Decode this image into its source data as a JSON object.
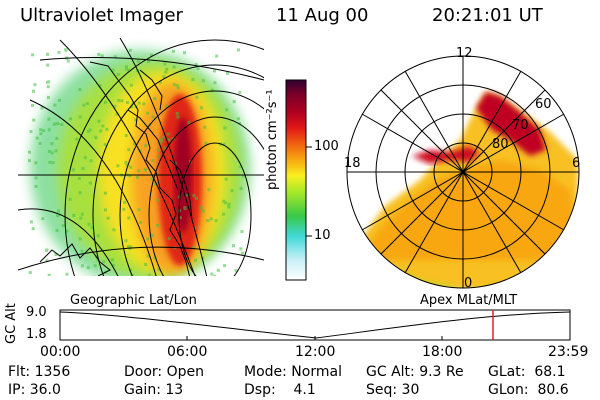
{
  "header": {
    "instrument": "Ultraviolet Imager",
    "date": "11 Aug 00",
    "time": "20:21:01 UT"
  },
  "colorbar": {
    "unit_label": "photon cm⁻²s⁻¹",
    "tick_100": "100",
    "tick_10": "10"
  },
  "polar_plot": {
    "labels": {
      "mlt_12": "12",
      "mlt_18": "18",
      "mlt_6": "6",
      "mlt_0": "0",
      "lat_60": "60",
      "lat_70": "70",
      "lat_80": "80"
    }
  },
  "panel_captions": {
    "left": "Geographic Lat/Lon",
    "right": "Apex MLat/MLT"
  },
  "timeline": {
    "axis_label": "GC Alt",
    "y_max": "9.0",
    "y_min": "1.8",
    "ticks": [
      "00:00",
      "06:00",
      "12:00",
      "18:00",
      "23:59"
    ],
    "marker_time": "20:21"
  },
  "info": {
    "flt": "Flt: 1356",
    "ip": "IP: 36.0",
    "door": "Door: Open",
    "gain": "Gain: 13",
    "mode": "Mode: Normal",
    "dsp": "Dsp:    4.1",
    "gc_alt": "GC Alt: 9.3 Re",
    "seq": "Seq: 30",
    "glat": "GLat:  68.1",
    "glon": "GLon:  80.6"
  },
  "colors": {
    "marker": "#e02020",
    "scale": [
      "#ffffff",
      "#c8f0f8",
      "#40d8d8",
      "#38c848",
      "#a8e828",
      "#f8f020",
      "#f8a810",
      "#f06010",
      "#e01818",
      "#b00020",
      "#800028",
      "#300030"
    ]
  }
}
